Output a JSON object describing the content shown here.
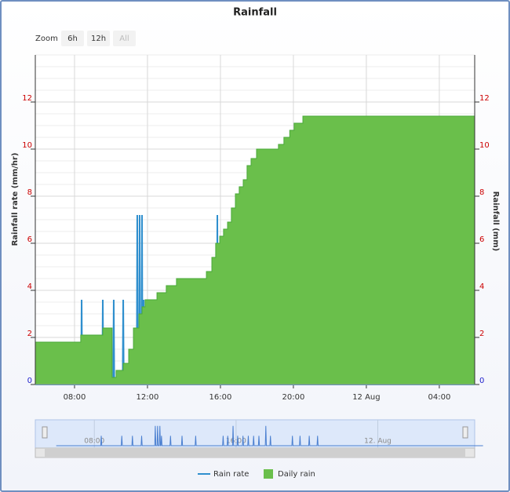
{
  "chart_data": {
    "type": "line",
    "title": "Rainfall",
    "zoom": {
      "label": "Zoom",
      "buttons": [
        "6h",
        "12h",
        "All"
      ]
    },
    "y_label": "Rainfall rate (mm/hr)",
    "y2_label": "Rainfall (mm)",
    "xlim": [
      5.85,
      29.94
    ],
    "xticks": [
      {
        "value": 8,
        "label": "08:00"
      },
      {
        "value": 12,
        "label": "12:00"
      },
      {
        "value": 16,
        "label": "16:00"
      },
      {
        "value": 20,
        "label": "20:00"
      },
      {
        "value": 24,
        "label": "12 Aug"
      },
      {
        "value": 28,
        "label": "04:00"
      }
    ],
    "ylim": [
      0,
      14
    ],
    "yticks": [
      0,
      2,
      4,
      6,
      8,
      10,
      12
    ],
    "y2lim": [
      0,
      14
    ],
    "y2ticks": [
      0,
      2,
      4,
      6,
      8,
      10,
      12
    ],
    "grid": true,
    "series": [
      {
        "name": "Rain rate",
        "color": "#2f8fce",
        "type": "line",
        "x": [
          5.85,
          8.36,
          8.39,
          8.42,
          9.52,
          9.55,
          9.58,
          10.12,
          10.15,
          10.18,
          10.64,
          10.67,
          10.7,
          11.41,
          11.44,
          11.47,
          11.54,
          11.57,
          11.6,
          11.67,
          11.7,
          11.73,
          11.76,
          11.79,
          11.82,
          12.27,
          12.3,
          12.33,
          12.92,
          12.95,
          12.98,
          13.69,
          13.72,
          13.75,
          15.24,
          15.27,
          15.3,
          15.5,
          15.53,
          15.56,
          15.8,
          15.83,
          15.86,
          16.06,
          16.09,
          16.12,
          16.36,
          16.39,
          16.42,
          16.66,
          16.69,
          16.72,
          16.96,
          16.99,
          17.02,
          17.26,
          17.29,
          17.32,
          17.65,
          17.68,
          17.71,
          17.91,
          17.94,
          17.97,
          19.15,
          19.18,
          19.21,
          19.58,
          19.61,
          19.64,
          20.1,
          20.13,
          20.16,
          20.57,
          20.6,
          20.63,
          29.94
        ],
        "values": [
          0,
          0,
          3.6,
          0,
          0,
          3.6,
          0,
          0,
          3.6,
          0,
          0,
          3.6,
          0,
          0,
          7.2,
          0,
          0,
          7.2,
          0,
          0,
          7.2,
          0,
          0,
          3.6,
          0,
          0,
          3.6,
          0,
          0,
          3.6,
          0,
          0,
          3.6,
          0,
          0,
          3.6,
          0,
          0,
          3.6,
          0,
          0,
          7.2,
          0,
          0,
          3.6,
          0,
          0,
          3.6,
          0,
          0,
          3.6,
          0,
          0,
          3.6,
          0,
          0,
          3.6,
          0,
          0,
          7.2,
          0,
          0,
          3.6,
          0,
          0,
          3.6,
          0,
          0,
          3.6,
          0,
          0,
          3.6,
          0,
          0,
          3.6,
          0,
          0
        ]
      },
      {
        "name": "Daily rain",
        "color": "#6abf4b",
        "type": "area",
        "step": true,
        "axis": "y2",
        "x": [
          5.85,
          8.34,
          9.55,
          10.06,
          10.28,
          10.67,
          10.97,
          11.23,
          11.53,
          11.7,
          11.87,
          12.52,
          13.03,
          13.59,
          15.23,
          15.53,
          15.74,
          15.96,
          16.17,
          16.39,
          16.6,
          16.82,
          17.03,
          17.25,
          17.46,
          17.68,
          17.98,
          19.18,
          19.48,
          19.8,
          20.04,
          20.52,
          29.94
        ],
        "values": [
          1.8,
          2.1,
          2.4,
          0.3,
          0.6,
          0.9,
          1.5,
          2.4,
          3.0,
          3.3,
          3.6,
          3.9,
          4.2,
          4.5,
          4.8,
          5.4,
          6.0,
          6.3,
          6.6,
          6.9,
          7.5,
          8.1,
          8.4,
          8.7,
          9.3,
          9.6,
          10.0,
          10.2,
          10.5,
          10.8,
          11.1,
          11.4,
          11.4
        ]
      }
    ],
    "navigator": {
      "xlim": [
        5.2,
        30.0
      ],
      "xticks": [
        {
          "value": 8,
          "label": "08:00"
        },
        {
          "value": 16,
          "label": "16:00"
        },
        {
          "value": 24,
          "label": "12. Aug"
        }
      ]
    },
    "legend": "bottom"
  }
}
